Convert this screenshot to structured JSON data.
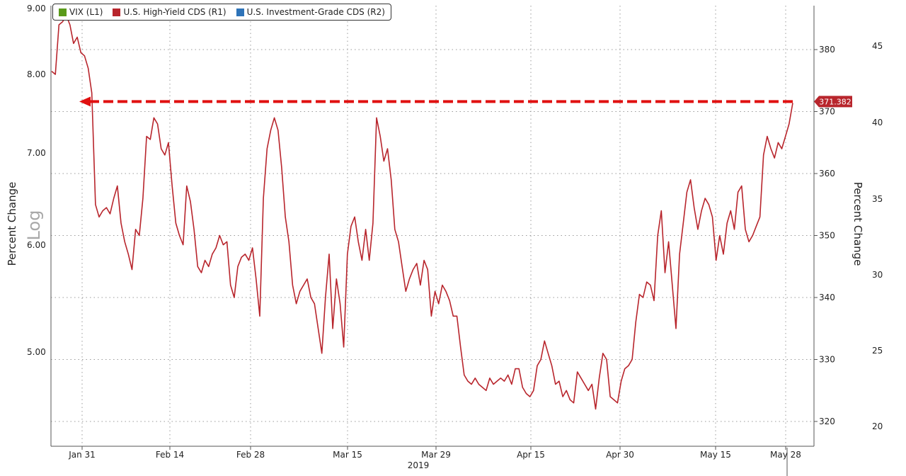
{
  "colors": {
    "vix": "#5a9a1a",
    "high_yield": "#b8252c",
    "investment_grade": "#2e73b8",
    "arrow": "#e01010"
  },
  "chart_data": {
    "type": "line",
    "legend": [
      {
        "label": "VIX (L1)",
        "color": "#5a9a1a"
      },
      {
        "label": "U.S. High-Yield CDS (R1)",
        "color": "#b8252c"
      },
      {
        "label": "U.S. Investment-Grade CDS (R2)",
        "color": "#2e73b8"
      }
    ],
    "left_axis": {
      "title": "Percent Change",
      "scale": "log",
      "scale_note": "Log",
      "ticks": [
        "9.00",
        "8.00",
        "7.00",
        "6.00",
        "5.00"
      ]
    },
    "right_axis_1": {
      "ticks": [
        "380",
        "370",
        "360",
        "350",
        "340",
        "330",
        "320"
      ],
      "ylim": [
        318,
        387
      ]
    },
    "right_axis_2": {
      "title": "Percent Change",
      "ticks": [
        "45",
        "40",
        "35",
        "30",
        "25",
        "20"
      ]
    },
    "x_ticks": [
      "Jan 31",
      "Feb 14",
      "Feb 28",
      "Mar 15",
      "Mar 29",
      "Apr 15",
      "Apr 30",
      "May 15",
      "May 28"
    ],
    "x_year": "2019",
    "gridlines": "dotted",
    "last_value_label": "371.382",
    "annotation": "dashed red arrow at 371.382 pointing back to late January",
    "series": [
      {
        "name": "U.S. High-Yield CDS (R1)",
        "color": "#b8252c",
        "values": [
          376.5,
          376,
          384,
          384.5,
          385.5,
          384,
          381,
          382,
          379.5,
          379,
          377,
          373,
          355,
          353,
          354,
          354.5,
          353.5,
          356,
          358,
          352,
          349,
          347,
          344.5,
          351,
          350,
          356,
          366,
          365.5,
          369,
          368,
          364,
          363,
          365,
          358,
          352,
          350,
          348.5,
          358,
          355.5,
          351,
          345,
          344,
          346,
          345,
          347,
          348,
          350,
          348.5,
          349,
          342,
          340,
          345,
          346.5,
          347,
          346,
          348,
          343,
          337,
          356,
          364,
          367,
          369,
          367,
          361,
          353,
          349,
          342,
          339,
          341,
          342,
          343,
          340,
          339,
          335,
          331,
          340,
          347,
          335,
          343,
          339,
          332,
          347,
          351.5,
          353,
          349,
          346,
          351,
          346,
          352,
          369,
          366,
          362,
          364,
          359,
          351,
          349,
          345,
          341,
          343,
          344.5,
          345.5,
          342,
          346,
          344.5,
          337,
          341,
          339,
          342,
          341,
          339.5,
          337,
          337,
          332,
          327.5,
          326.5,
          326,
          327,
          326,
          325.5,
          325,
          327,
          326,
          326.5,
          327,
          326.5,
          327.5,
          326,
          328.5,
          328.5,
          325.5,
          324.5,
          324,
          325,
          329,
          330,
          333,
          331,
          329,
          326,
          326.5,
          324,
          325,
          323.5,
          323,
          328,
          327,
          326,
          325,
          326,
          322,
          327,
          331,
          330,
          324,
          323.5,
          323,
          326.5,
          328.5,
          329,
          330,
          336,
          340.5,
          340,
          342.5,
          342,
          339.5,
          350,
          354,
          344,
          349,
          342,
          335,
          347,
          352,
          357,
          359,
          354.5,
          351,
          354,
          356,
          355,
          353,
          346,
          350,
          347,
          352,
          354,
          351,
          357,
          358,
          351,
          349,
          350,
          351.5,
          353,
          363,
          366,
          364,
          362.5,
          365,
          364,
          366,
          368,
          371.382
        ]
      }
    ]
  }
}
